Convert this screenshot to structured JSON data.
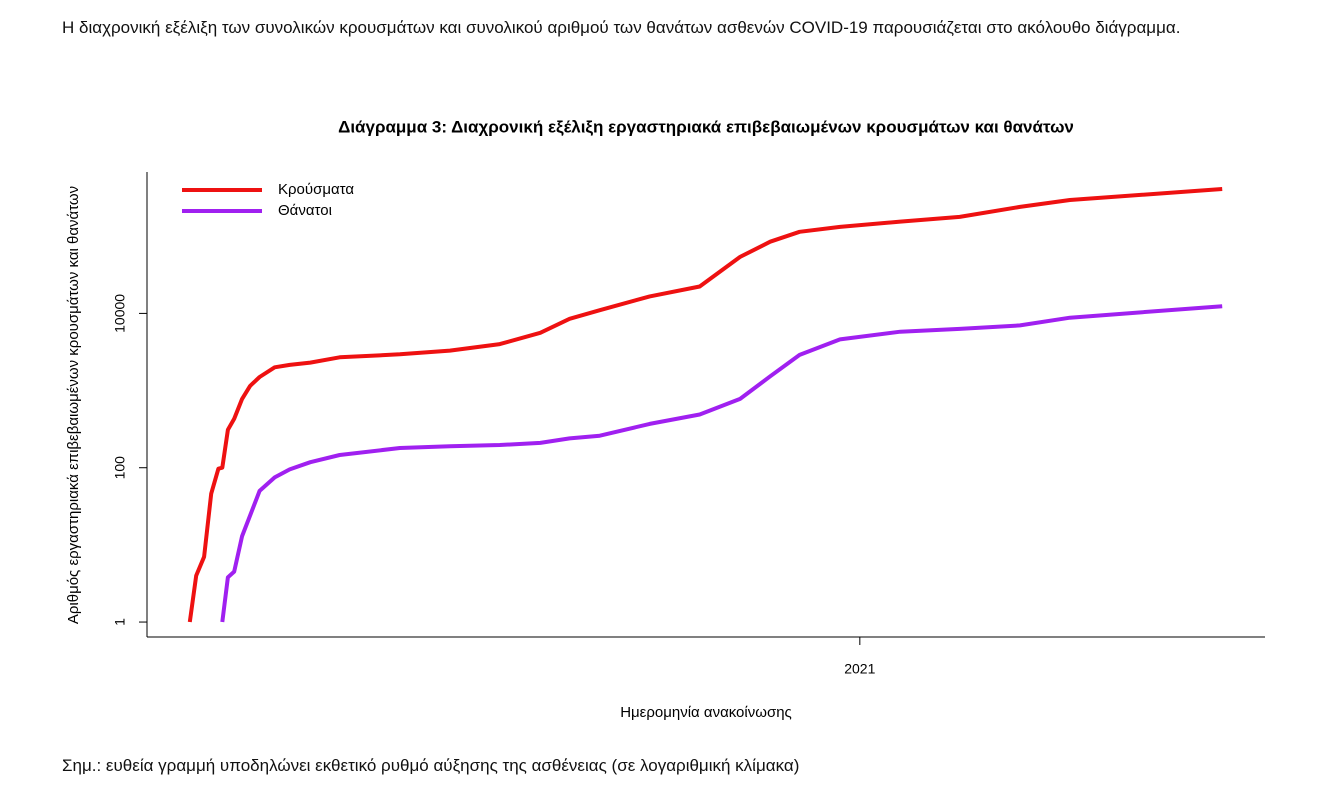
{
  "intro": "Η διαχρονική εξέλιξη των συνολικών κρουσμάτων και συνολικού αριθμού των θανάτων ασθενών COVID-19 παρουσιάζεται στο ακόλουθο διάγραμμα.",
  "note": "Σημ.: ευθεία γραμμή υποδηλώνει εκθετικό ρυθμό αύξησης της ασθένειας (σε λογαριθμική κλίμακα)",
  "chart_data": {
    "type": "line",
    "title": "Διάγραμμα 3: Διαχρονική εξέλιξη εργαστηριακά επιβεβαιωμένων κρουσμάτων και θανάτων",
    "x_label": "Ημερομηνία ανακοίνωσης",
    "y_label": "Αριθμός εργαστηριακά επιβεβαιωμένων κρουσμάτων και θανάτων",
    "log_y": true,
    "legend": "top-left",
    "xlim": [
      2020.101,
      2021.511
    ],
    "xticks": [
      2021
    ],
    "ylim": [
      0.64,
      680000
    ],
    "yticks": [
      1,
      100,
      10000
    ],
    "x": [
      2020.155,
      2020.163,
      2020.173,
      2020.182,
      2020.191,
      2020.196,
      2020.203,
      2020.211,
      2020.221,
      2020.231,
      2020.243,
      2020.262,
      2020.281,
      2020.307,
      2020.344,
      2020.42,
      2020.483,
      2020.546,
      2020.597,
      2020.634,
      2020.672,
      2020.735,
      2020.798,
      2020.849,
      2020.887,
      2020.924,
      2020.975,
      2021.051,
      2021.126,
      2021.202,
      2021.265,
      2021.457
    ],
    "series": [
      {
        "name": "Κρούσματα",
        "color": "#ee1111",
        "values": [
          1,
          4,
          7,
          46,
          97,
          100,
          310,
          430,
          780,
          1150,
          1500,
          2000,
          2150,
          2300,
          2700,
          2950,
          3300,
          4000,
          5600,
          8500,
          11000,
          16600,
          22300,
          54000,
          85000,
          114000,
          132000,
          155000,
          178000,
          240000,
          295000,
          410000
        ]
      },
      {
        "name": "Θάνατοι",
        "color": "#a020f0",
        "values": [
          null,
          null,
          null,
          null,
          null,
          1,
          3.8,
          4.5,
          13,
          24,
          50,
          75,
          95,
          118,
          146,
          180,
          190,
          197,
          210,
          240,
          260,
          370,
          490,
          780,
          1530,
          2900,
          4600,
          5800,
          6300,
          7000,
          8800,
          12400
        ]
      }
    ]
  }
}
